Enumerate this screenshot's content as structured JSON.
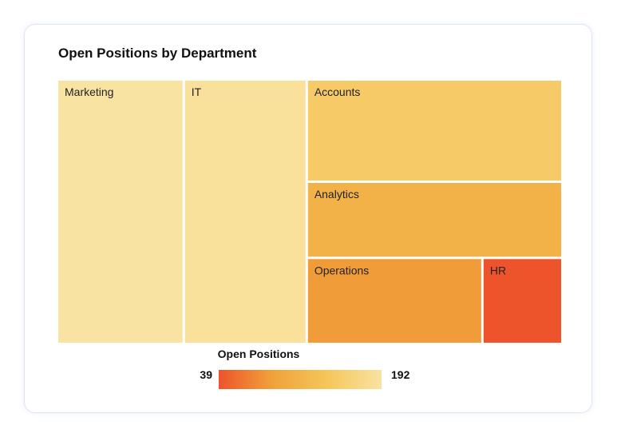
{
  "chart_data": {
    "type": "treemap",
    "title": "Open Positions by Department",
    "color_scale": {
      "title": "Open Positions",
      "min": 39,
      "max": 192,
      "colors": [
        "#ee542b",
        "#f0a23a",
        "#f5c65a",
        "#f9e3a2"
      ]
    },
    "items": [
      {
        "name": "Marketing",
        "value": 192
      },
      {
        "name": "IT",
        "value": 188
      },
      {
        "name": "Accounts",
        "value": 150
      },
      {
        "name": "Analytics",
        "value": 113
      },
      {
        "name": "Operations",
        "value": 87
      },
      {
        "name": "HR",
        "value": 39
      }
    ]
  },
  "legend": {
    "title": "Open Positions",
    "min_label": "39",
    "max_label": "192"
  }
}
